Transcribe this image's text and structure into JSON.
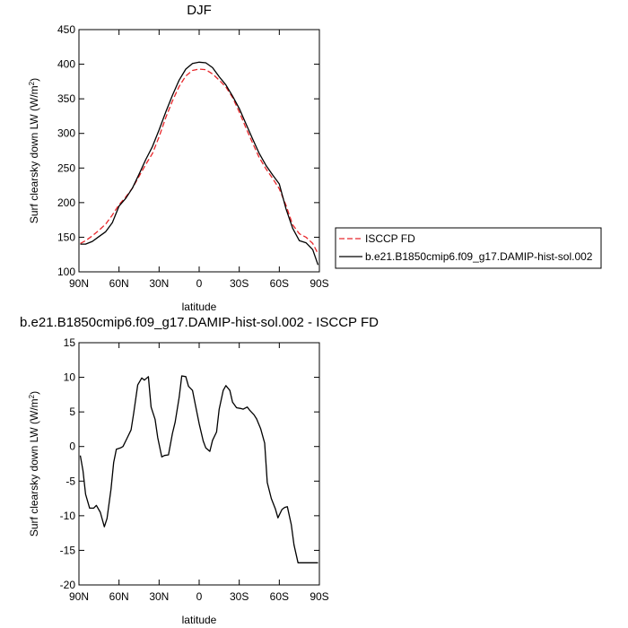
{
  "chart_data": [
    {
      "type": "line",
      "title": "DJF",
      "xlabel": "latitude",
      "ylabel": "Surf clearsky down LW (W/m",
      "ylabel_sup": "2",
      "ylabel_close": ")",
      "xlim": [
        90,
        -90
      ],
      "ylim": [
        100,
        450
      ],
      "xticks": [
        90,
        60,
        30,
        0,
        -30,
        -60,
        -90
      ],
      "xtick_labels": [
        "90N",
        "60N",
        "30N",
        "0",
        "30S",
        "60S",
        "90S"
      ],
      "yticks": [
        100,
        150,
        200,
        250,
        300,
        350,
        400,
        450
      ],
      "ytick_labels": [
        "100",
        "150",
        "200",
        "250",
        "300",
        "350",
        "400",
        "450"
      ],
      "legend_position": "right",
      "series": [
        {
          "name": "ISCCP FD",
          "color": "#e8262a",
          "dashed": true,
          "x": [
            89,
            85,
            80,
            75,
            70,
            65,
            60,
            55,
            50,
            45,
            40,
            35,
            30,
            25,
            20,
            15,
            10,
            5,
            0,
            -5,
            -10,
            -15,
            -20,
            -25,
            -30,
            -35,
            -40,
            -45,
            -50,
            -55,
            -60,
            -65,
            -70,
            -75,
            -80,
            -85,
            -89
          ],
          "y": [
            141,
            145,
            152,
            160,
            169,
            182,
            197,
            208,
            221,
            238,
            255,
            271,
            295,
            323,
            347,
            368,
            383,
            391,
            393,
            392,
            386,
            377,
            367,
            352,
            331,
            308,
            286,
            265,
            249,
            235,
            220,
            196,
            168,
            155,
            150,
            141,
            126
          ]
        },
        {
          "name": "b.e21.B1850cmip6.f09_g17.DAMIP-hist-sol.002",
          "color": "#000000",
          "dashed": false,
          "x": [
            89,
            85,
            80,
            75,
            70,
            65,
            60,
            55,
            50,
            45,
            40,
            35,
            30,
            25,
            20,
            15,
            10,
            5,
            0,
            -5,
            -10,
            -15,
            -20,
            -25,
            -30,
            -35,
            -40,
            -45,
            -50,
            -55,
            -60,
            -65,
            -70,
            -75,
            -80,
            -85,
            -89
          ],
          "y": [
            140,
            140,
            144,
            151,
            158,
            171,
            195,
            206,
            221,
            241,
            262,
            281,
            305,
            331,
            355,
            377,
            393,
            401,
            403,
            402,
            395,
            382,
            370,
            354,
            336,
            314,
            292,
            271,
            254,
            240,
            227,
            191,
            163,
            145,
            142,
            132,
            110
          ]
        }
      ]
    },
    {
      "type": "line",
      "title": "b.e21.B1850cmip6.f09_g17.DAMIP-hist-sol.002 - ISCCP FD",
      "xlabel": "latitude",
      "ylabel": "Surf clearsky down LW (W/m",
      "ylabel_sup": "2",
      "ylabel_close": ")",
      "xlim": [
        90,
        -90
      ],
      "ylim": [
        -20,
        15
      ],
      "xticks": [
        90,
        60,
        30,
        0,
        -30,
        -60,
        -90
      ],
      "xtick_labels": [
        "90N",
        "60N",
        "30N",
        "0",
        "30S",
        "60S",
        "90S"
      ],
      "yticks": [
        -20,
        -15,
        -10,
        -5,
        0,
        5,
        10,
        15
      ],
      "ytick_labels": [
        "-20",
        "-15",
        "-10",
        "-5",
        "0",
        "5",
        "10",
        "15"
      ],
      "series": [
        {
          "color": "#000000",
          "dashed": false,
          "x": [
            89,
            87,
            85,
            82,
            79,
            77,
            74,
            71,
            69,
            66,
            64,
            62,
            59,
            57,
            54,
            51,
            49,
            46,
            43,
            41,
            38,
            36,
            33,
            31,
            28,
            26,
            23,
            20,
            18,
            15,
            13,
            10,
            8,
            5,
            3,
            0,
            -3,
            -5,
            -8,
            -10,
            -13,
            -15,
            -18,
            -20,
            -23,
            -25,
            -28,
            -31,
            -33,
            -36,
            -38,
            -41,
            -43,
            -46,
            -49,
            -51,
            -54,
            -57,
            -59,
            -62,
            -64,
            -66,
            -69,
            -71,
            -74,
            -77,
            -79,
            -82,
            -85,
            -87,
            -89
          ],
          "y": [
            -1.3,
            -3.5,
            -6.9,
            -8.9,
            -8.9,
            -8.5,
            -9.5,
            -11.6,
            -10.4,
            -6.2,
            -2.3,
            -0.4,
            -0.2,
            0.0,
            1.2,
            2.4,
            4.8,
            8.9,
            9.9,
            9.6,
            10.1,
            5.7,
            3.9,
            1.3,
            -1.5,
            -1.3,
            -1.2,
            1.9,
            3.5,
            7.1,
            10.2,
            10.1,
            8.7,
            8.1,
            6.2,
            3.3,
            0.8,
            -0.2,
            -0.7,
            0.9,
            2.1,
            5.4,
            8.1,
            8.8,
            8.1,
            6.4,
            5.6,
            5.5,
            5.4,
            5.7,
            5.2,
            4.6,
            4.0,
            2.6,
            0.5,
            -5.2,
            -7.5,
            -9.0,
            -10.3,
            -9.1,
            -8.8,
            -8.7,
            -11.3,
            -14.2,
            -16.8,
            -16.8,
            -16.8,
            -16.8,
            -16.8,
            -16.8,
            -16.8
          ]
        }
      ]
    }
  ]
}
